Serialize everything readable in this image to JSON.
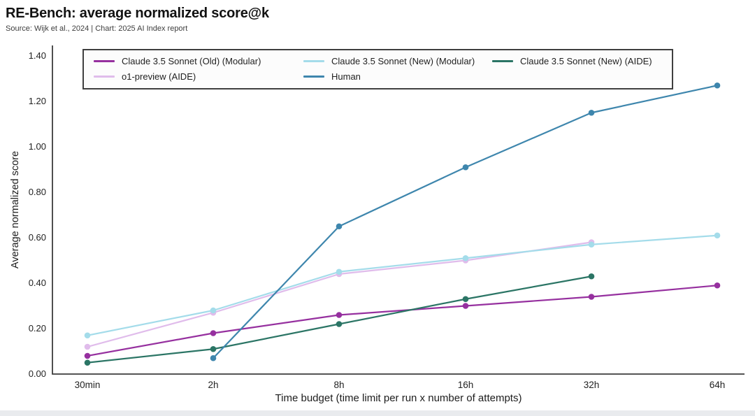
{
  "chart_data": {
    "type": "line",
    "title": "RE-Bench: average normalized score@k",
    "source": "Source: Wijk et al., 2024 | Chart: 2025 AI Index report",
    "xlabel": "Time budget (time limit per run x number of attempts)",
    "ylabel": "Average normalized score",
    "categories": [
      "30min",
      "2h",
      "8h",
      "16h",
      "32h",
      "64h"
    ],
    "ytick_labels": [
      "0.00",
      "0.20",
      "0.40",
      "0.60",
      "0.80",
      "1.00",
      "1.20",
      "1.40"
    ],
    "ylim": [
      0.0,
      1.4
    ],
    "grid": false,
    "legend_position": "top-inside",
    "axis_color": "#3c3c3c",
    "series": [
      {
        "name": "Claude 3.5 Sonnet (Old) (Modular)",
        "color": "#96309F",
        "values": [
          0.08,
          0.18,
          0.26,
          0.3,
          0.34,
          0.39
        ]
      },
      {
        "name": "Claude 3.5 Sonnet (New) (Modular)",
        "color": "#A4DCEA",
        "values": [
          0.17,
          0.28,
          0.45,
          0.51,
          0.57,
          0.61
        ]
      },
      {
        "name": "Claude 3.5 Sonnet (New) (AIDE)",
        "color": "#2B7565",
        "values": [
          0.05,
          0.11,
          0.22,
          0.33,
          0.43,
          null
        ]
      },
      {
        "name": "o1-preview (AIDE)",
        "color": "#E0BCEB",
        "values": [
          0.12,
          0.27,
          0.44,
          0.5,
          0.58,
          null
        ]
      },
      {
        "name": "Human",
        "color": "#3E86AD",
        "values": [
          null,
          0.07,
          0.65,
          0.91,
          1.15,
          1.27
        ]
      }
    ]
  }
}
